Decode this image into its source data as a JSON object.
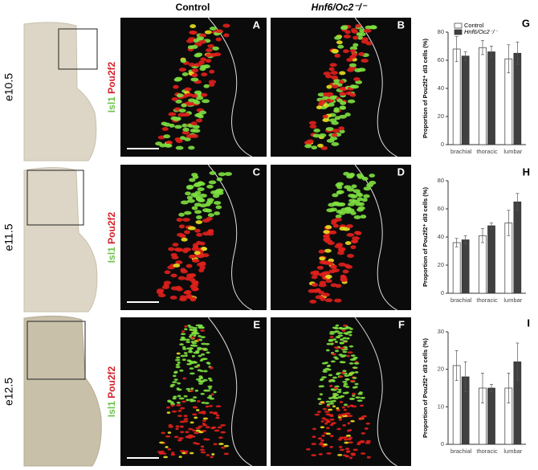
{
  "figure": {
    "column_headers": [
      "Control",
      "Hnf6/Oc2⁻/⁻"
    ],
    "rows": [
      {
        "stage": "e10.5",
        "marker_green": "Isl1",
        "marker_red": "Pou2f2",
        "panels": [
          "A",
          "B"
        ]
      },
      {
        "stage": "e11.5",
        "marker_green": "Isl1",
        "marker_red": "Pou2f2",
        "panels": [
          "C",
          "D"
        ]
      },
      {
        "stage": "e12.5",
        "marker_green": "Isl1",
        "marker_red": "Pou2f2",
        "panels": [
          "E",
          "F"
        ]
      }
    ]
  },
  "chart_data": [
    {
      "type": "bar",
      "annotation": "G",
      "y_label": "Proportion of Pou2f2⁺ dI3 cells (%)",
      "categories": [
        "brachial",
        "thoracic",
        "lumbar"
      ],
      "series": [
        {
          "name": "Control",
          "color": "#ffffff",
          "values": [
            68,
            69,
            61
          ],
          "errors": [
            9,
            5,
            10
          ]
        },
        {
          "name": "Hnf6/Oc2⁻/⁻",
          "color": "#404040",
          "values": [
            63,
            66,
            65
          ],
          "errors": [
            3,
            4,
            8
          ]
        }
      ],
      "ylim": [
        0,
        80
      ],
      "yticks": [
        0,
        20,
        40,
        60,
        80
      ],
      "legend": "top"
    },
    {
      "type": "bar",
      "annotation": "H",
      "y_label": "Proportion of Pou2f2⁺ dI3 cells (%)",
      "categories": [
        "brachial",
        "thoracic",
        "lumbar"
      ],
      "series": [
        {
          "color": "#ffffff",
          "values": [
            36,
            41,
            50
          ],
          "errors": [
            3,
            5,
            9
          ]
        },
        {
          "color": "#404040",
          "values": [
            38,
            48,
            65
          ],
          "errors": [
            3,
            2,
            6
          ]
        }
      ],
      "ylim": [
        0,
        80
      ],
      "yticks": [
        0,
        20,
        40,
        60,
        80
      ]
    },
    {
      "type": "bar",
      "annotation": "I",
      "y_label": "Proportion of Pou2f2⁺ dI3 cells (%)",
      "categories": [
        "brachial",
        "thoracic",
        "lumbar"
      ],
      "series": [
        {
          "color": "#ffffff",
          "values": [
            21,
            15,
            15
          ],
          "errors": [
            4,
            4,
            4
          ]
        },
        {
          "color": "#404040",
          "values": [
            18,
            15,
            22
          ],
          "errors": [
            4,
            1,
            5
          ]
        }
      ],
      "ylim": [
        0,
        30
      ],
      "yticks": [
        0,
        10,
        20,
        30
      ]
    }
  ]
}
